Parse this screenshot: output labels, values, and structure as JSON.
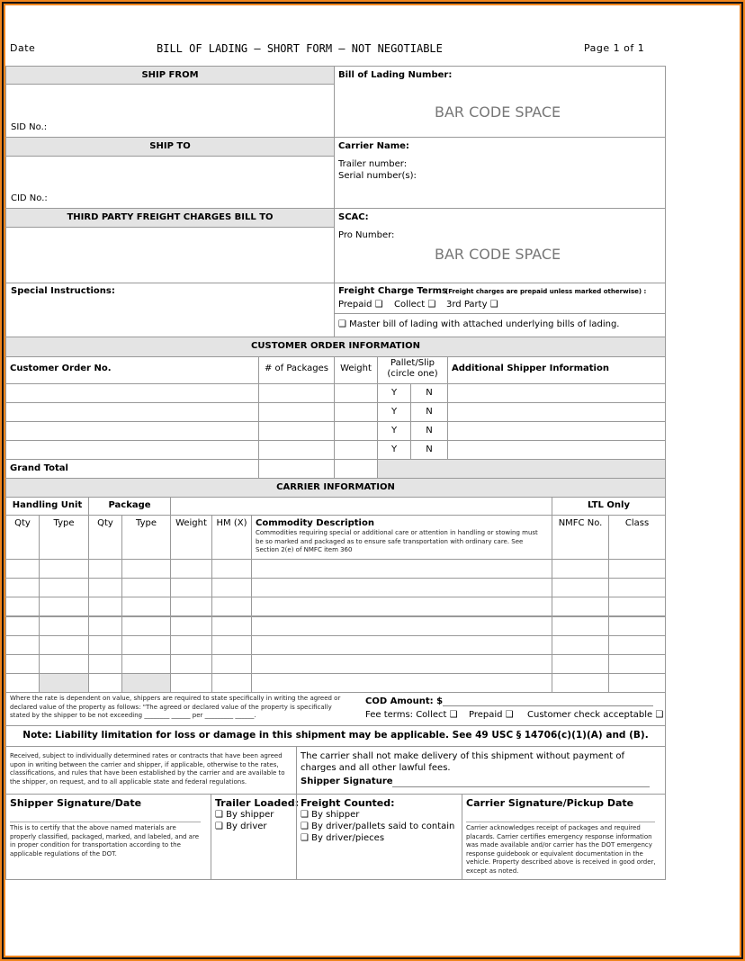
{
  "header": {
    "date_label": "Date",
    "title": "BILL OF LADING – SHORT FORM – NOT NEGOTIABLE",
    "page": "Page 1 of 1"
  },
  "ship_from": {
    "title": "SHIP FROM",
    "sid": "SID No.:"
  },
  "ship_to": {
    "title": "SHIP TO",
    "cid": "CID No.:"
  },
  "third_party": {
    "title": "THIRD PARTY FREIGHT CHARGES BILL TO"
  },
  "special_instructions": "Special Instructions:",
  "bol": {
    "label": "Bill of Lading Number:",
    "barcode": "BAR CODE SPACE"
  },
  "carrier": {
    "name": "Carrier Name:",
    "trailer": "Trailer number:",
    "serial": "Serial number(s):"
  },
  "scac": {
    "label": "SCAC:",
    "pro": "Pro Number:",
    "barcode": "BAR CODE SPACE"
  },
  "freight_terms": {
    "label": "Freight Charge Terms",
    "note": "(Freight charges are prepaid unless marked otherwise) :",
    "prepaid": "Prepaid ❑",
    "collect": "Collect ❑",
    "third": "3rd Party ❑",
    "master": "❑ Master bill of lading with attached underlying bills of lading."
  },
  "customer_order": {
    "title": "CUSTOMER ORDER INFORMATION",
    "cols": [
      "Customer Order No.",
      "# of Packages",
      "Weight",
      "Pallet/Slip\n(circle one)",
      "Additional Shipper Information"
    ],
    "y": "Y",
    "n": "N",
    "grand_total": "Grand Total"
  },
  "carrier_info": {
    "title": "CARRIER INFORMATION",
    "handling_unit": "Handling Unit",
    "package": "Package",
    "ltl": "LTL Only",
    "cols": [
      "Qty",
      "Type",
      "Qty",
      "Type",
      "Weight",
      "HM (X)",
      "Commodity Description",
      "NMFC No.",
      "Class"
    ],
    "commodity_note": "Commodities requiring special or additional care or attention in handling or stowing must be so marked and packaged as to ensure safe transportation with ordinary care. See Section 2(e) of NMFC item 360"
  },
  "declared_value": "Where the rate is dependent on value, shippers are required to state specifically in writing the agreed or declared value of the property as follows: \"The agreed or declared value of the property is specifically stated by the shipper to be not exceeding ________ ______ per _________ ______.",
  "cod": {
    "label": "COD Amount: $",
    "fee_terms": "Fee terms: Collect ❑",
    "prepaid": "Prepaid ❑",
    "check": "Customer check acceptable ❑"
  },
  "note": "Note: Liability limitation for loss or damage in this shipment may be applicable. See 49 USC § 14706(c)(1)(A) and (B).",
  "received": "Received, subject to individually determined rates or contracts that have been agreed upon in writing between the carrier and shipper, if applicable, otherwise to the rates, classifications, and rules that have been established by the carrier and are available to the shipper, on request, and to all applicable state and federal regulations.",
  "carrier_delivery": "The carrier shall not make delivery of this shipment without payment of charges and all other lawful fees.",
  "shipper_signature": "Shipper Signature",
  "shipper_sig_date": {
    "title": "Shipper Signature/Date",
    "text": "This is to certify that the above named materials are properly classified, packaged, marked, and labeled, and are in proper condition for transportation according to the applicable regulations of the DOT."
  },
  "trailer_loaded": {
    "title": "Trailer Loaded:",
    "items": [
      "❑ By shipper",
      "❑ By driver"
    ]
  },
  "freight_counted": {
    "title": "Freight Counted:",
    "items": [
      "❑ By shipper",
      "❑ By driver/pallets said to contain",
      "❑ By driver/pieces"
    ]
  },
  "carrier_sig": {
    "title": "Carrier Signature/Pickup Date",
    "text": "Carrier acknowledges receipt of packages and required placards. Carrier certifies emergency response information was made available and/or carrier has the DOT emergency response guidebook or equivalent documentation in the vehicle. Property described above is received in good order, except as noted."
  }
}
